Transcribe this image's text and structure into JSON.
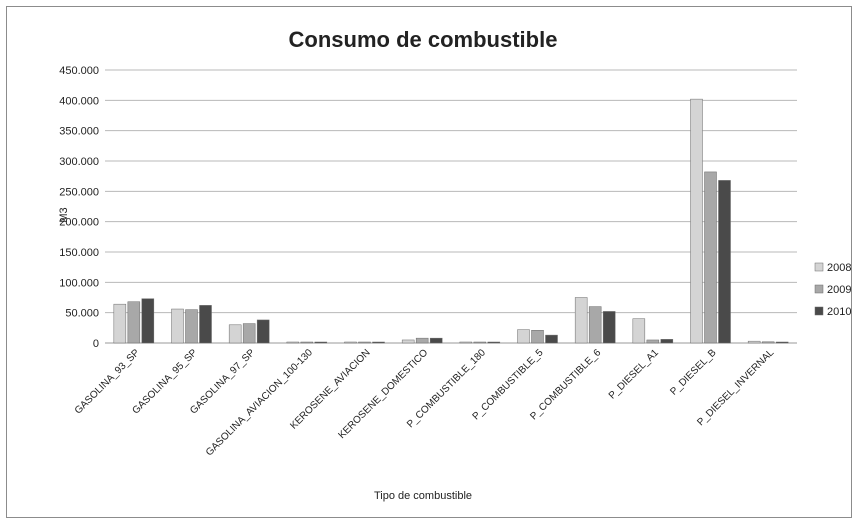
{
  "chart_data": {
    "type": "bar",
    "title": "Consumo de combustible",
    "xlabel": "Tipo de combustible",
    "ylabel": "M3",
    "ylim": [
      0,
      450000
    ],
    "yticks": [
      0,
      50000,
      100000,
      150000,
      200000,
      250000,
      300000,
      350000,
      400000,
      450000
    ],
    "ytick_labels": [
      "0",
      "50.000",
      "100.000",
      "150.000",
      "200.000",
      "250.000",
      "300.000",
      "350.000",
      "400.000",
      "450.000"
    ],
    "grid": true,
    "legend_position": "right",
    "categories": [
      "GASOLINA_93_SP",
      "GASOLINA_95_SP",
      "GASOLINA_97_SP",
      "GASOLINA_AVIACION_100-130",
      "KEROSENE_AVIACION",
      "KEROSENE_DOMESTICO",
      "P_COMBUSTIBLE_180",
      "P_COMBUSTIBLE_5",
      "P_COMBUSTIBLE_6",
      "P_DIESEL_A1",
      "P_DIESEL_B",
      "P_DIESEL_INVERNAL"
    ],
    "series": [
      {
        "name": "2008",
        "color": "#d4d4d4",
        "values": [
          64000,
          56000,
          30000,
          500,
          300,
          5000,
          300,
          22000,
          75000,
          40000,
          402000,
          3000
        ]
      },
      {
        "name": "2009",
        "color": "#a8a8a8",
        "values": [
          68000,
          55000,
          32000,
          500,
          300,
          8000,
          300,
          21000,
          60000,
          5000,
          282000,
          2000
        ]
      },
      {
        "name": "2010",
        "color": "#4a4a4a",
        "values": [
          73000,
          62000,
          38000,
          500,
          300,
          8000,
          300,
          13000,
          52000,
          6000,
          268000,
          500
        ]
      }
    ]
  }
}
